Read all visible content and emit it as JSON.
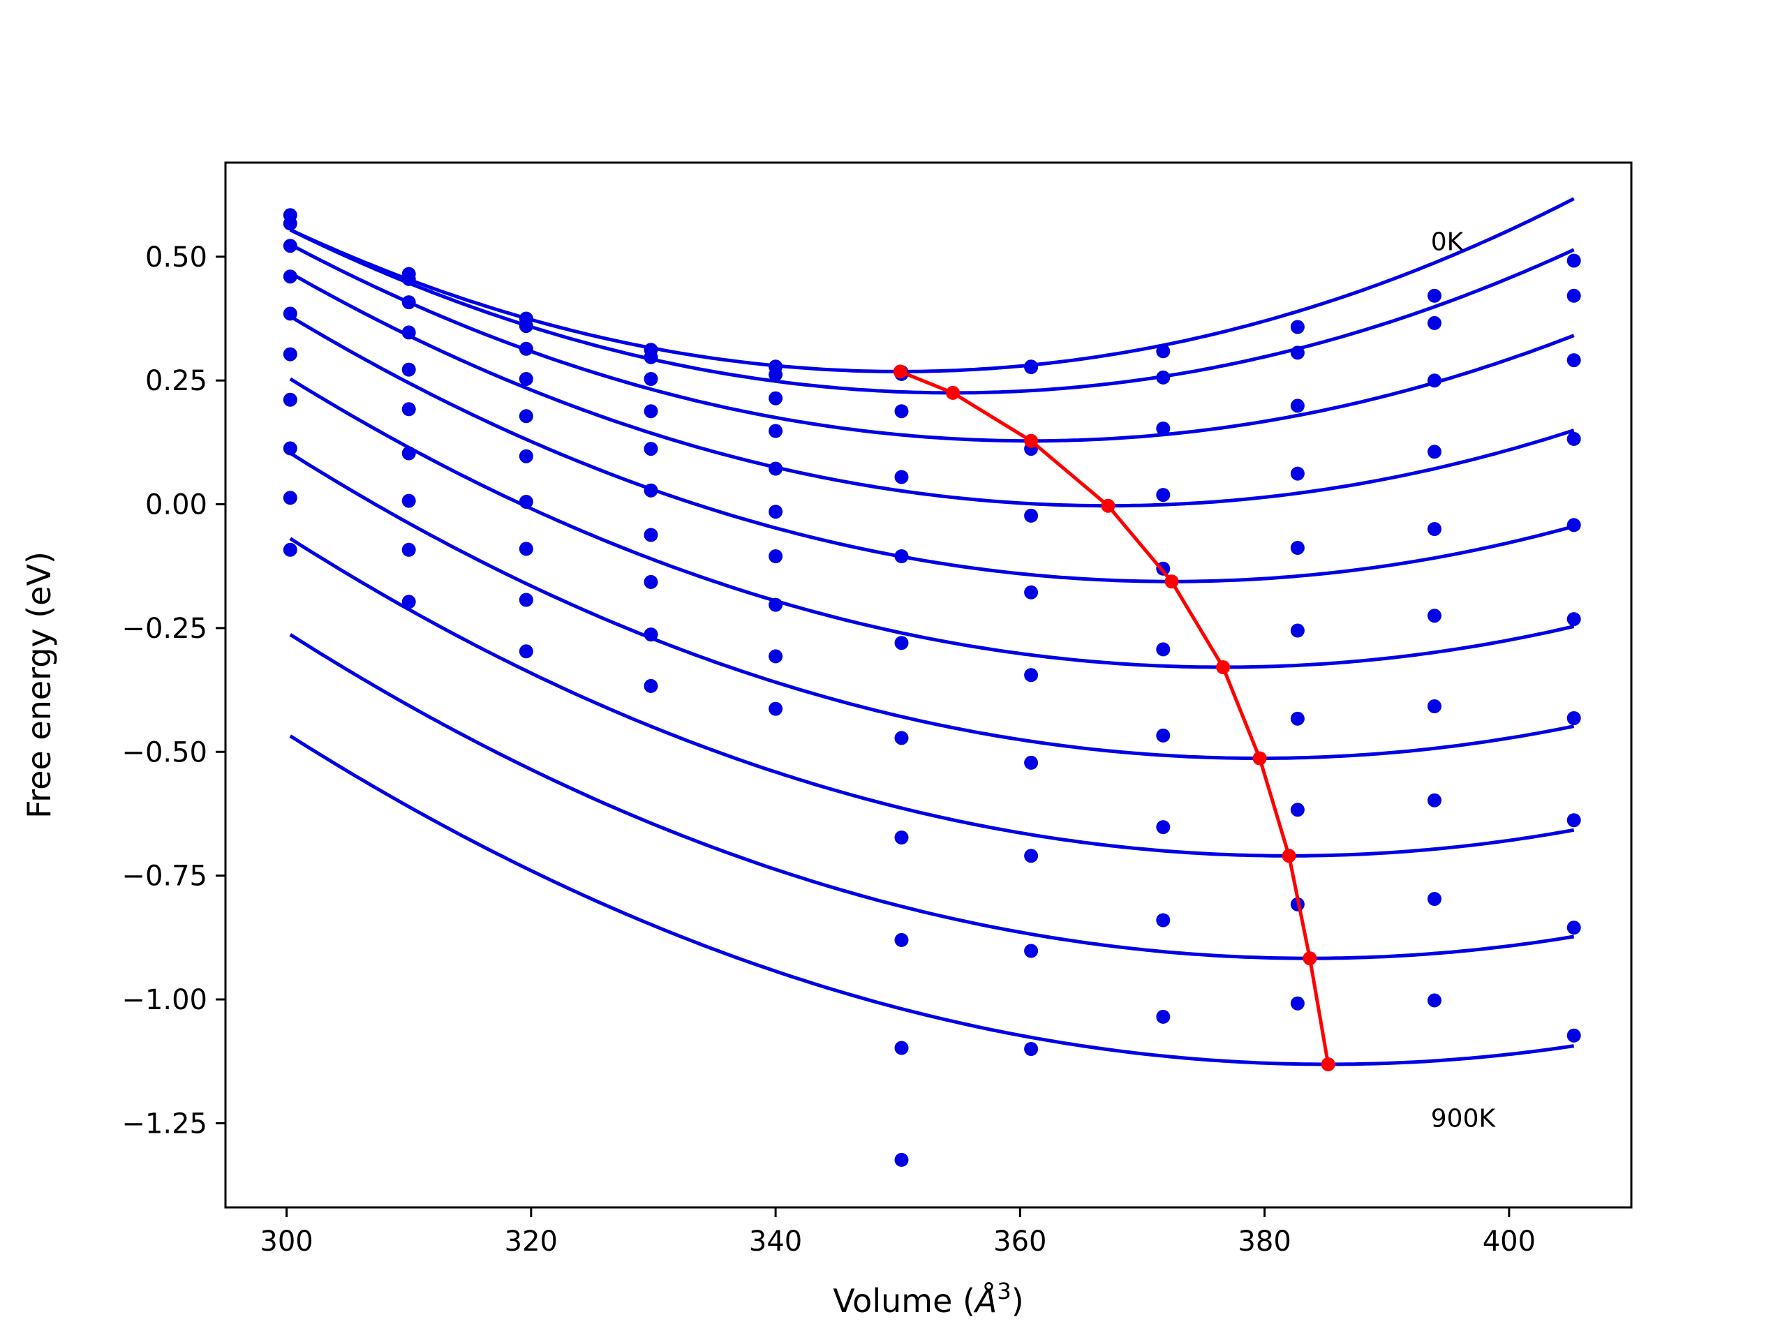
{
  "chart_data": {
    "type": "scatter",
    "title": "",
    "xlabel_prefix": "Volume (",
    "xlabel_unit": "Å",
    "xlabel_exp": "3",
    "xlabel_suffix": ")",
    "ylabel": "Free energy (eV)",
    "xlim": [
      295,
      410
    ],
    "ylim": [
      -1.42,
      0.69
    ],
    "xticks": [
      300,
      320,
      340,
      360,
      380,
      400
    ],
    "yticks": [
      0.5,
      0.25,
      0.0,
      -0.25,
      -0.5,
      -0.75,
      -1.0,
      -1.25
    ],
    "xtick_labels": [
      "300",
      "320",
      "340",
      "360",
      "380",
      "400"
    ],
    "ytick_labels": [
      "0.50",
      "0.25",
      "0.00",
      "−0.25",
      "−0.50",
      "−0.75",
      "−1.00",
      "−1.25"
    ],
    "grid": false,
    "volumes": [
      300.3,
      310.0,
      319.6,
      329.8,
      340.0,
      350.3,
      360.9,
      371.7,
      382.7,
      393.9,
      405.3
    ],
    "series": [
      {
        "label": "0K",
        "points": [
          0.584,
          0.465,
          0.375,
          0.312,
          0.278,
          0.267,
          0.278,
          0.309,
          0.358,
          0.421,
          0.492
        ],
        "min_v": 350.2,
        "min_e": 0.268,
        "a": 0.000115
      },
      {
        "points": [
          0.567,
          0.455,
          0.36,
          0.297,
          0.262,
          0.263,
          0.277,
          0.256,
          0.306,
          0.366,
          0.421
        ],
        "min_v": 354.5,
        "min_e": 0.225,
        "a": 0.000112
      },
      {
        "points": [
          0.522,
          0.408,
          0.314,
          0.253,
          0.214,
          0.188,
          0.112,
          0.153,
          0.199,
          0.25,
          0.291
        ],
        "min_v": 360.9,
        "min_e": 0.128,
        "a": 0.000108
      },
      {
        "points": [
          0.46,
          0.347,
          0.253,
          0.188,
          0.148,
          0.055,
          -0.023,
          0.019,
          0.062,
          0.106,
          0.132
        ],
        "min_v": 367.2,
        "min_e": -0.003,
        "a": 0.000105
      },
      {
        "points": [
          0.385,
          0.272,
          0.178,
          0.112,
          0.072,
          -0.105,
          -0.178,
          -0.13,
          -0.088,
          -0.05,
          -0.042
        ],
        "min_v": 372.4,
        "min_e": -0.156,
        "a": 0.000103
      },
      {
        "points": [
          0.303,
          0.192,
          0.097,
          0.028,
          -0.015,
          -0.28,
          -0.345,
          -0.293,
          -0.255,
          -0.225,
          -0.232
        ],
        "min_v": 376.6,
        "min_e": -0.329,
        "a": 0.0001
      },
      {
        "points": [
          0.211,
          0.103,
          0.005,
          -0.062,
          -0.105,
          -0.472,
          -0.522,
          -0.467,
          -0.433,
          -0.408,
          -0.432
        ],
        "min_v": 379.6,
        "min_e": -0.513,
        "a": 9.8e-05
      },
      {
        "points": [
          0.113,
          0.007,
          -0.09,
          -0.157,
          -0.203,
          -0.673,
          -0.71,
          -0.652,
          -0.617,
          -0.598,
          -0.638
        ],
        "min_v": 382.0,
        "min_e": -0.71,
        "a": 9.6e-05
      },
      {
        "points": [
          0.013,
          -0.092,
          -0.193,
          -0.263,
          -0.307,
          -0.88,
          -0.902,
          -0.84,
          -0.808,
          -0.797,
          -0.855
        ],
        "min_v": 383.7,
        "min_e": -0.917,
        "a": 9.4e-05
      },
      {
        "label": "900K",
        "points": [
          -0.092,
          -0.197,
          -0.297,
          -0.367,
          -0.413,
          -1.098,
          -1.1,
          -1.035,
          -1.008,
          -1.002,
          -1.073
        ],
        "extra_v": 350.3,
        "extra_e": -1.324,
        "min_v": 385.2,
        "min_e": -1.131,
        "a": 9.2e-05
      }
    ],
    "fit_range": [
      300.3,
      405.3
    ],
    "colors": {
      "points": "#0000e6",
      "fits": "#0000e6",
      "minima": "#ff0000"
    }
  }
}
